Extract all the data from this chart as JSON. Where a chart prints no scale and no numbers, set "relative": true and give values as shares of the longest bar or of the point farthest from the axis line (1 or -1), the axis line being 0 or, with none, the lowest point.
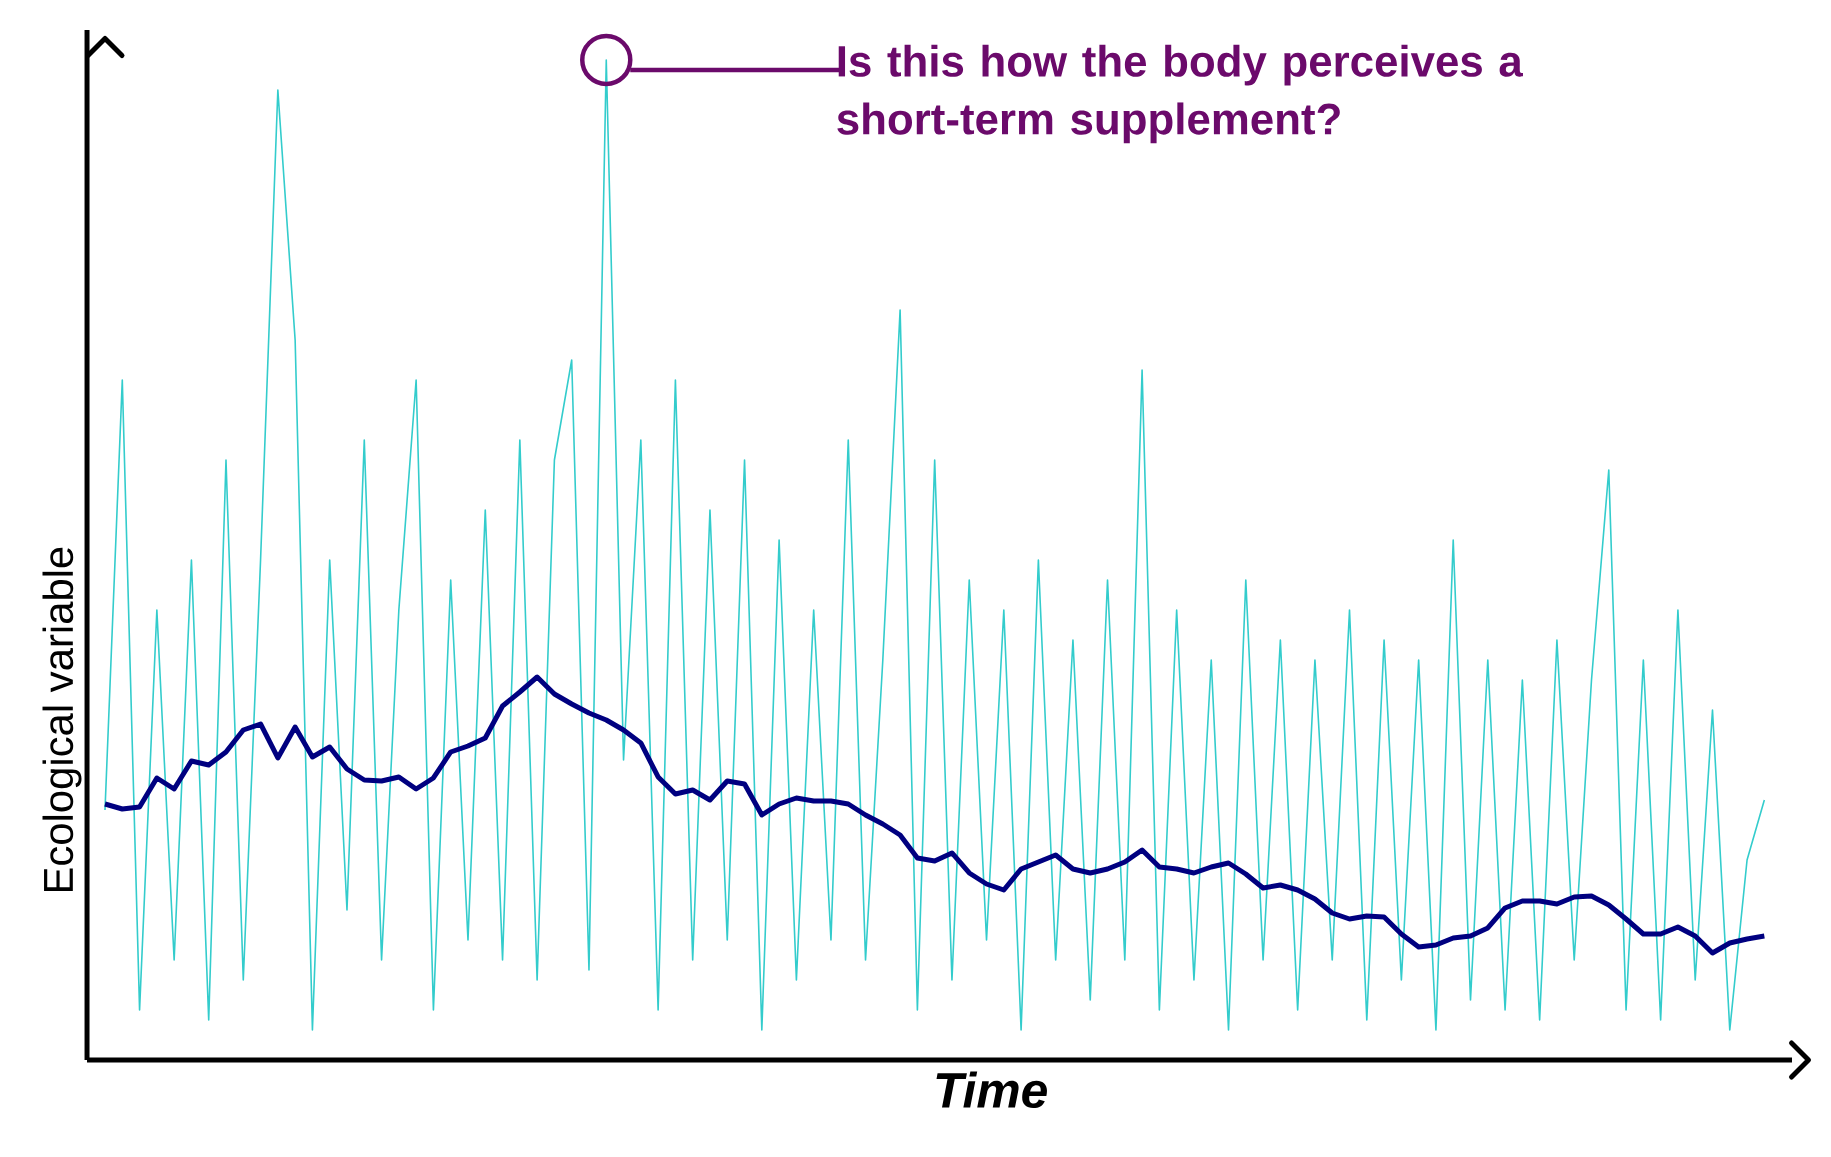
{
  "chart_data": {
    "type": "line",
    "relative": true,
    "marker": "none",
    "xlabel": "Time",
    "ylabel": "Ecological variable",
    "annotations": [
      "Is this how the body perceives a short-term supplement?"
    ],
    "categories": [
      null,
      null,
      null,
      null,
      null,
      null,
      null,
      null,
      null,
      null,
      null,
      null,
      null,
      null,
      null,
      null,
      null,
      null,
      null,
      null,
      null,
      null,
      null,
      null,
      null,
      null,
      null,
      null,
      null,
      null,
      null,
      null,
      null,
      null,
      null,
      null,
      null,
      null,
      null,
      null,
      null,
      null,
      null,
      null,
      null,
      null,
      null,
      null,
      null,
      null,
      null,
      null,
      null,
      null,
      null,
      null,
      null,
      null,
      null,
      null,
      null,
      null,
      null,
      null,
      null,
      null,
      null,
      null,
      null,
      null,
      null,
      null,
      null,
      null,
      null,
      null,
      null,
      null,
      null,
      null,
      null,
      null,
      null,
      null,
      null,
      null,
      null,
      null,
      null,
      null,
      null,
      null,
      null,
      null,
      null,
      null,
      null
    ],
    "series": [
      {
        "color": "#33cccc",
        "values": [
          0.25,
          0.68,
          0.05,
          0.45,
          0.1,
          0.5,
          0.04,
          0.6,
          0.08,
          0.5,
          0.97,
          0.72,
          0.03,
          0.5,
          0.15,
          0.62,
          0.1,
          0.45,
          0.68,
          0.05,
          0.48,
          0.12,
          0.55,
          0.1,
          0.62,
          0.08,
          0.6,
          0.7,
          0.09,
          1.0,
          0.3,
          0.62,
          0.05,
          0.68,
          0.1,
          0.55,
          0.12,
          0.6,
          0.03,
          0.52,
          0.08,
          0.45,
          0.12,
          0.62,
          0.1,
          0.4,
          0.75,
          0.05,
          0.6,
          0.08,
          0.48,
          0.12,
          0.45,
          0.03,
          0.5,
          0.1,
          0.42,
          0.06,
          0.48,
          0.1,
          0.69,
          0.05,
          0.45,
          0.08,
          0.4,
          0.03,
          0.48,
          0.1,
          0.42,
          0.05,
          0.4,
          0.1,
          0.45,
          0.04,
          0.42,
          0.08,
          0.4,
          0.03,
          0.52,
          0.06,
          0.4,
          0.05,
          0.38,
          0.04,
          0.42,
          0.1,
          0.38,
          0.59,
          0.05,
          0.4,
          0.04,
          0.45,
          0.08,
          0.35,
          0.03,
          0.2,
          0.26
        ]
      },
      {
        "color": "#000080",
        "values": [
          0.256,
          0.251,
          0.253,
          0.282,
          0.271,
          0.299,
          0.295,
          0.308,
          0.33,
          0.336,
          0.302,
          0.333,
          0.303,
          0.313,
          0.291,
          0.28,
          0.279,
          0.283,
          0.271,
          0.282,
          0.308,
          0.314,
          0.322,
          0.354,
          0.368,
          0.383,
          0.366,
          0.356,
          0.347,
          0.34,
          0.33,
          0.317,
          0.283,
          0.266,
          0.27,
          0.26,
          0.279,
          0.276,
          0.245,
          0.256,
          0.262,
          0.259,
          0.259,
          0.256,
          0.245,
          0.236,
          0.225,
          0.202,
          0.199,
          0.207,
          0.187,
          0.176,
          0.17,
          0.191,
          0.198,
          0.205,
          0.191,
          0.187,
          0.191,
          0.198,
          0.21,
          0.193,
          0.191,
          0.187,
          0.193,
          0.197,
          0.186,
          0.172,
          0.175,
          0.17,
          0.161,
          0.147,
          0.141,
          0.144,
          0.143,
          0.126,
          0.113,
          0.115,
          0.122,
          0.124,
          0.132,
          0.152,
          0.159,
          0.159,
          0.156,
          0.163,
          0.164,
          0.155,
          0.141,
          0.126,
          0.126,
          0.133,
          0.124,
          0.107,
          0.117,
          0.121,
          0.124
        ]
      }
    ]
  }
}
